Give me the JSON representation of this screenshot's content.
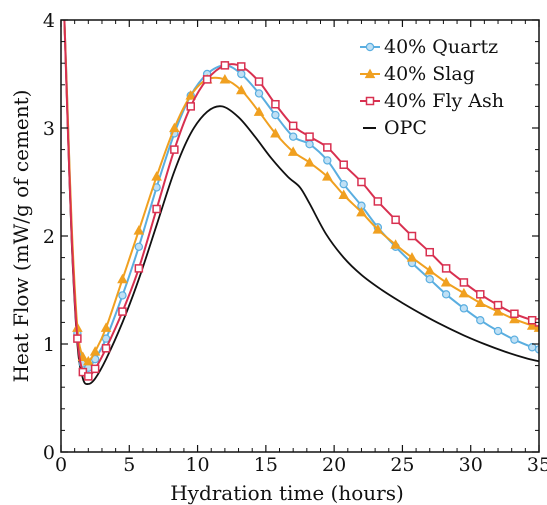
{
  "chart_data": {
    "type": "line",
    "xlabel": "Hydration time (hours)",
    "ylabel": "Heat Flow (mW/g of cement)",
    "xlim": [
      0,
      35
    ],
    "ylim": [
      0,
      4
    ],
    "x_ticks": [
      "0",
      "5",
      "10",
      "15",
      "20",
      "25",
      "30",
      "35"
    ],
    "y_ticks": [
      "0",
      "1",
      "2",
      "3",
      "4"
    ],
    "grid": false,
    "legend_position": "top-right",
    "series": [
      {
        "name": "40% Quartz",
        "color": "#5aaee0",
        "marker": "circle",
        "points": [
          [
            0.25,
            4.0
          ],
          [
            0.5,
            3.1
          ],
          [
            0.8,
            2.0
          ],
          [
            1.2,
            1.1
          ],
          [
            1.6,
            0.82
          ],
          [
            2.0,
            0.78
          ],
          [
            2.5,
            0.86
          ],
          [
            3.3,
            1.05
          ],
          [
            4.5,
            1.45
          ],
          [
            5.7,
            1.9
          ],
          [
            7.0,
            2.45
          ],
          [
            8.3,
            2.95
          ],
          [
            9.5,
            3.3
          ],
          [
            10.7,
            3.5
          ],
          [
            12.0,
            3.58
          ],
          [
            13.2,
            3.5
          ],
          [
            14.5,
            3.32
          ],
          [
            15.7,
            3.12
          ],
          [
            17.0,
            2.92
          ],
          [
            18.2,
            2.85
          ],
          [
            19.5,
            2.7
          ],
          [
            20.7,
            2.48
          ],
          [
            22.0,
            2.28
          ],
          [
            23.2,
            2.08
          ],
          [
            24.5,
            1.9
          ],
          [
            25.7,
            1.75
          ],
          [
            27.0,
            1.6
          ],
          [
            28.2,
            1.46
          ],
          [
            29.5,
            1.33
          ],
          [
            30.7,
            1.22
          ],
          [
            32.0,
            1.12
          ],
          [
            33.2,
            1.04
          ],
          [
            34.5,
            0.97
          ],
          [
            35.0,
            0.95
          ]
        ]
      },
      {
        "name": "40% Slag",
        "color": "#f0a020",
        "marker": "triangle",
        "points": [
          [
            0.25,
            4.0
          ],
          [
            0.5,
            3.1
          ],
          [
            0.8,
            2.05
          ],
          [
            1.2,
            1.15
          ],
          [
            1.6,
            0.88
          ],
          [
            2.0,
            0.84
          ],
          [
            2.5,
            0.93
          ],
          [
            3.3,
            1.15
          ],
          [
            4.5,
            1.6
          ],
          [
            5.7,
            2.05
          ],
          [
            7.0,
            2.55
          ],
          [
            8.3,
            3.0
          ],
          [
            9.5,
            3.3
          ],
          [
            10.7,
            3.45
          ],
          [
            12.0,
            3.45
          ],
          [
            13.2,
            3.35
          ],
          [
            14.5,
            3.15
          ],
          [
            15.7,
            2.95
          ],
          [
            17.0,
            2.78
          ],
          [
            18.2,
            2.68
          ],
          [
            19.5,
            2.55
          ],
          [
            20.7,
            2.38
          ],
          [
            22.0,
            2.22
          ],
          [
            23.2,
            2.06
          ],
          [
            24.5,
            1.92
          ],
          [
            25.7,
            1.8
          ],
          [
            27.0,
            1.68
          ],
          [
            28.2,
            1.57
          ],
          [
            29.5,
            1.47
          ],
          [
            30.7,
            1.38
          ],
          [
            32.0,
            1.3
          ],
          [
            33.2,
            1.23
          ],
          [
            34.5,
            1.17
          ],
          [
            35.0,
            1.15
          ]
        ]
      },
      {
        "name": "40% Fly Ash",
        "color": "#d83050",
        "marker": "square",
        "points": [
          [
            0.25,
            4.0
          ],
          [
            0.5,
            3.0
          ],
          [
            0.8,
            1.95
          ],
          [
            1.2,
            1.05
          ],
          [
            1.6,
            0.74
          ],
          [
            2.0,
            0.7
          ],
          [
            2.5,
            0.77
          ],
          [
            3.3,
            0.96
          ],
          [
            4.5,
            1.3
          ],
          [
            5.7,
            1.7
          ],
          [
            7.0,
            2.25
          ],
          [
            8.3,
            2.8
          ],
          [
            9.5,
            3.2
          ],
          [
            10.7,
            3.45
          ],
          [
            12.0,
            3.58
          ],
          [
            13.2,
            3.57
          ],
          [
            14.5,
            3.43
          ],
          [
            15.7,
            3.22
          ],
          [
            17.0,
            3.02
          ],
          [
            18.2,
            2.92
          ],
          [
            19.5,
            2.82
          ],
          [
            20.7,
            2.66
          ],
          [
            22.0,
            2.5
          ],
          [
            23.2,
            2.32
          ],
          [
            24.5,
            2.15
          ],
          [
            25.7,
            2.0
          ],
          [
            27.0,
            1.85
          ],
          [
            28.2,
            1.7
          ],
          [
            29.5,
            1.57
          ],
          [
            30.7,
            1.46
          ],
          [
            32.0,
            1.36
          ],
          [
            33.2,
            1.28
          ],
          [
            34.5,
            1.22
          ],
          [
            35.0,
            1.2
          ]
        ]
      },
      {
        "name": "OPC",
        "color": "#111111",
        "marker": "none",
        "points": [
          [
            0.25,
            4.0
          ],
          [
            0.5,
            3.0
          ],
          [
            0.8,
            1.9
          ],
          [
            1.2,
            1.0
          ],
          [
            1.6,
            0.68
          ],
          [
            2.0,
            0.63
          ],
          [
            2.5,
            0.68
          ],
          [
            3.3,
            0.86
          ],
          [
            4.5,
            1.2
          ],
          [
            5.7,
            1.6
          ],
          [
            7.0,
            2.1
          ],
          [
            8.3,
            2.6
          ],
          [
            9.5,
            2.95
          ],
          [
            10.7,
            3.15
          ],
          [
            11.8,
            3.2
          ],
          [
            13.0,
            3.1
          ],
          [
            14.2,
            2.92
          ],
          [
            15.4,
            2.72
          ],
          [
            16.6,
            2.55
          ],
          [
            17.5,
            2.45
          ],
          [
            18.2,
            2.3
          ],
          [
            19.4,
            2.02
          ],
          [
            20.7,
            1.8
          ],
          [
            22.0,
            1.64
          ],
          [
            23.5,
            1.5
          ],
          [
            25.0,
            1.38
          ],
          [
            26.5,
            1.27
          ],
          [
            28.0,
            1.17
          ],
          [
            29.5,
            1.08
          ],
          [
            31.0,
            1.0
          ],
          [
            32.5,
            0.93
          ],
          [
            34.0,
            0.87
          ],
          [
            35.0,
            0.84
          ]
        ]
      }
    ]
  }
}
